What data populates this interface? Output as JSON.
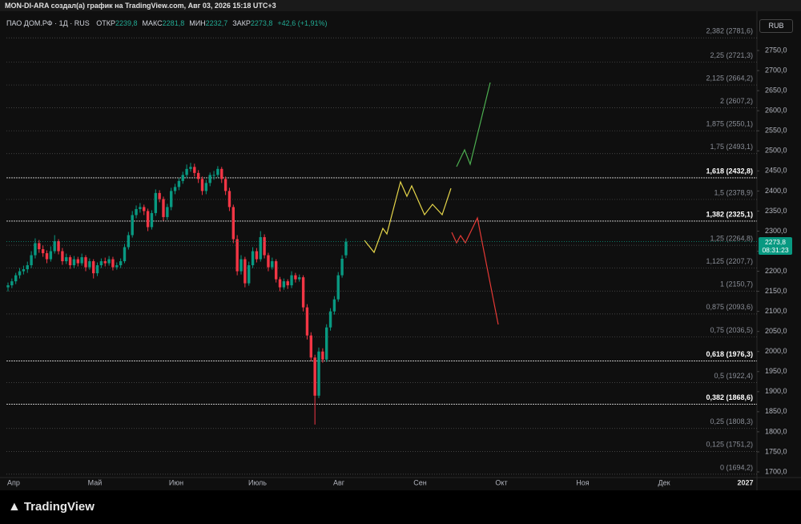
{
  "header": {
    "attribution": "MON-DI-ARA создал(а) график на TradingView.com, Авг 03, 2026 15:18 UTC+3"
  },
  "chart_data": {
    "type": "candlestick",
    "symbol": "ПАО ДОМ.РФ · 1Д · RUS",
    "ohlc_legend": [
      {
        "label": "ОТКР",
        "value": "2239,8"
      },
      {
        "label": "МАКС",
        "value": "2281,8"
      },
      {
        "label": "МИН",
        "value": "2232,7"
      },
      {
        "label": "ЗАКР",
        "value": "2273,8"
      }
    ],
    "change": "+42,6 (+1,91%)",
    "currency": "RUB",
    "last_price_label": "2273,8",
    "countdown": "08:31:23",
    "up_color": "#089981",
    "down_color": "#f23645",
    "categories": [
      "Апр",
      "Май",
      "Июн",
      "Июль",
      "Авг",
      "Сен",
      "Окт",
      "Ноя",
      "Дек",
      "2027"
    ],
    "ylim": [
      1686,
      2848
    ],
    "yticks": [
      {
        "value": 1700,
        "label": "1700,0"
      },
      {
        "value": 1750,
        "label": "1750,0"
      },
      {
        "value": 1800,
        "label": "1800,0"
      },
      {
        "value": 1850,
        "label": "1850,0"
      },
      {
        "value": 1900,
        "label": "1900,0"
      },
      {
        "value": 1950,
        "label": "1950,0"
      },
      {
        "value": 2000,
        "label": "2000,0"
      },
      {
        "value": 2050,
        "label": "2050,0"
      },
      {
        "value": 2100,
        "label": "2100,0"
      },
      {
        "value": 2150,
        "label": "2150,0"
      },
      {
        "value": 2200,
        "label": "2200,0"
      },
      {
        "value": 2250,
        "label": "2250,0"
      },
      {
        "value": 2300,
        "label": "2300,0"
      },
      {
        "value": 2350,
        "label": "2350,0"
      },
      {
        "value": 2400,
        "label": "2400,0"
      },
      {
        "value": 2450,
        "label": "2450,0"
      },
      {
        "value": 2500,
        "label": "2500,0"
      },
      {
        "value": 2550,
        "label": "2550,0"
      },
      {
        "value": 2600,
        "label": "2600,0"
      },
      {
        "value": 2650,
        "label": "2650,0"
      },
      {
        "value": 2700,
        "label": "2700,0"
      },
      {
        "value": 2750,
        "label": "2750,0"
      }
    ],
    "fib_levels": [
      {
        "label": "2,382 (2781,6)",
        "value": 2781.6,
        "key": false
      },
      {
        "label": "2,25 (2721,3)",
        "value": 2721.3,
        "key": false
      },
      {
        "label": "2,125 (2664,2)",
        "value": 2664.2,
        "key": false
      },
      {
        "label": "2 (2607,2)",
        "value": 2607.2,
        "key": false
      },
      {
        "label": "1,875 (2550,1)",
        "value": 2550.1,
        "key": false
      },
      {
        "label": "1,75 (2493,1)",
        "value": 2493.1,
        "key": false
      },
      {
        "label": "1,618 (2432,8)",
        "value": 2432.8,
        "key": true
      },
      {
        "label": "1,5 (2378,9)",
        "value": 2378.9,
        "key": false
      },
      {
        "label": "1,382 (2325,1)",
        "value": 2325.1,
        "key": true
      },
      {
        "label": "1,25 (2264,8)",
        "value": 2264.8,
        "key": false
      },
      {
        "label": "1,125 (2207,7)",
        "value": 2207.7,
        "key": false
      },
      {
        "label": "1 (2150,7)",
        "value": 2150.7,
        "key": false
      },
      {
        "label": "0,875 (2093,6)",
        "value": 2093.6,
        "key": false
      },
      {
        "label": "0,75 (2036,5)",
        "value": 2036.5,
        "key": false
      },
      {
        "label": "0,618 (1976,3)",
        "value": 1976.3,
        "key": true
      },
      {
        "label": "0,5 (1922,4)",
        "value": 1922.4,
        "key": false
      },
      {
        "label": "0,382 (1868,6)",
        "value": 1868.6,
        "key": true
      },
      {
        "label": "0,25 (1808,3)",
        "value": 1808.3,
        "key": false
      },
      {
        "label": "0,125 (1751,2)",
        "value": 1751.2,
        "key": false
      },
      {
        "label": "0 (1694,2)",
        "value": 1694.2,
        "key": false
      }
    ],
    "ohlc": [
      [
        2160,
        2172,
        2150,
        2165
      ],
      [
        2165,
        2182,
        2158,
        2175
      ],
      [
        2175,
        2196,
        2168,
        2190
      ],
      [
        2190,
        2208,
        2182,
        2200
      ],
      [
        2200,
        2214,
        2192,
        2205
      ],
      [
        2205,
        2224,
        2196,
        2215
      ],
      [
        2215,
        2250,
        2208,
        2240
      ],
      [
        2240,
        2282,
        2232,
        2270
      ],
      [
        2270,
        2278,
        2246,
        2255
      ],
      [
        2255,
        2264,
        2236,
        2245
      ],
      [
        2245,
        2252,
        2220,
        2230
      ],
      [
        2230,
        2262,
        2224,
        2250
      ],
      [
        2250,
        2290,
        2244,
        2275
      ],
      [
        2275,
        2280,
        2242,
        2250
      ],
      [
        2250,
        2258,
        2216,
        2225
      ],
      [
        2225,
        2244,
        2218,
        2235
      ],
      [
        2235,
        2240,
        2206,
        2215
      ],
      [
        2215,
        2238,
        2208,
        2230
      ],
      [
        2230,
        2236,
        2212,
        2220
      ],
      [
        2220,
        2244,
        2214,
        2235
      ],
      [
        2235,
        2240,
        2200,
        2210
      ],
      [
        2210,
        2232,
        2204,
        2225
      ],
      [
        2225,
        2230,
        2182,
        2195
      ],
      [
        2195,
        2222,
        2188,
        2215
      ],
      [
        2215,
        2232,
        2208,
        2225
      ],
      [
        2225,
        2234,
        2212,
        2220
      ],
      [
        2220,
        2238,
        2214,
        2230
      ],
      [
        2230,
        2236,
        2202,
        2210
      ],
      [
        2210,
        2222,
        2204,
        2215
      ],
      [
        2215,
        2232,
        2208,
        2225
      ],
      [
        2225,
        2268,
        2220,
        2260
      ],
      [
        2260,
        2298,
        2254,
        2290
      ],
      [
        2290,
        2350,
        2284,
        2340
      ],
      [
        2340,
        2364,
        2332,
        2355
      ],
      [
        2355,
        2370,
        2346,
        2360
      ],
      [
        2360,
        2366,
        2340,
        2350
      ],
      [
        2350,
        2356,
        2300,
        2310
      ],
      [
        2310,
        2352,
        2304,
        2345
      ],
      [
        2345,
        2404,
        2338,
        2395
      ],
      [
        2395,
        2402,
        2372,
        2380
      ],
      [
        2380,
        2386,
        2326,
        2335
      ],
      [
        2335,
        2368,
        2328,
        2360
      ],
      [
        2360,
        2408,
        2352,
        2400
      ],
      [
        2400,
        2418,
        2392,
        2410
      ],
      [
        2410,
        2432,
        2402,
        2425
      ],
      [
        2425,
        2448,
        2418,
        2440
      ],
      [
        2440,
        2466,
        2432,
        2455
      ],
      [
        2455,
        2470,
        2448,
        2460
      ],
      [
        2460,
        2468,
        2436,
        2445
      ],
      [
        2445,
        2452,
        2420,
        2430
      ],
      [
        2430,
        2436,
        2390,
        2400
      ],
      [
        2400,
        2428,
        2392,
        2420
      ],
      [
        2420,
        2446,
        2412,
        2440
      ],
      [
        2440,
        2450,
        2428,
        2440
      ],
      [
        2440,
        2462,
        2434,
        2455
      ],
      [
        2455,
        2460,
        2420,
        2430
      ],
      [
        2430,
        2436,
        2390,
        2400
      ],
      [
        2400,
        2408,
        2350,
        2360
      ],
      [
        2360,
        2366,
        2270,
        2280
      ],
      [
        2280,
        2290,
        2190,
        2200
      ],
      [
        2200,
        2240,
        2192,
        2230
      ],
      [
        2230,
        2236,
        2160,
        2170
      ],
      [
        2170,
        2224,
        2164,
        2215
      ],
      [
        2215,
        2260,
        2208,
        2250
      ],
      [
        2250,
        2258,
        2222,
        2230
      ],
      [
        2230,
        2300,
        2224,
        2285
      ],
      [
        2285,
        2292,
        2232,
        2240
      ],
      [
        2240,
        2246,
        2200,
        2210
      ],
      [
        2210,
        2234,
        2204,
        2225
      ],
      [
        2225,
        2230,
        2172,
        2180
      ],
      [
        2180,
        2186,
        2150,
        2160
      ],
      [
        2160,
        2182,
        2154,
        2175
      ],
      [
        2175,
        2180,
        2156,
        2165
      ],
      [
        2165,
        2200,
        2158,
        2190
      ],
      [
        2190,
        2196,
        2172,
        2180
      ],
      [
        2180,
        2192,
        2174,
        2185
      ],
      [
        2185,
        2190,
        2100,
        2110
      ],
      [
        2110,
        2118,
        2030,
        2040
      ],
      [
        2040,
        2048,
        1976,
        1985
      ],
      [
        1985,
        1992,
        1818,
        1890
      ],
      [
        1890,
        2010,
        1884,
        2000
      ],
      [
        2000,
        2008,
        1972,
        1980
      ],
      [
        1980,
        2068,
        1974,
        2060
      ],
      [
        2060,
        2108,
        2052,
        2100
      ],
      [
        2100,
        2138,
        2092,
        2130
      ],
      [
        2130,
        2198,
        2124,
        2190
      ],
      [
        2190,
        2240,
        2184,
        2231.2
      ],
      [
        2239.8,
        2281.8,
        2232.7,
        2273.8
      ]
    ]
  },
  "footer": {
    "logo": "TradingView"
  }
}
